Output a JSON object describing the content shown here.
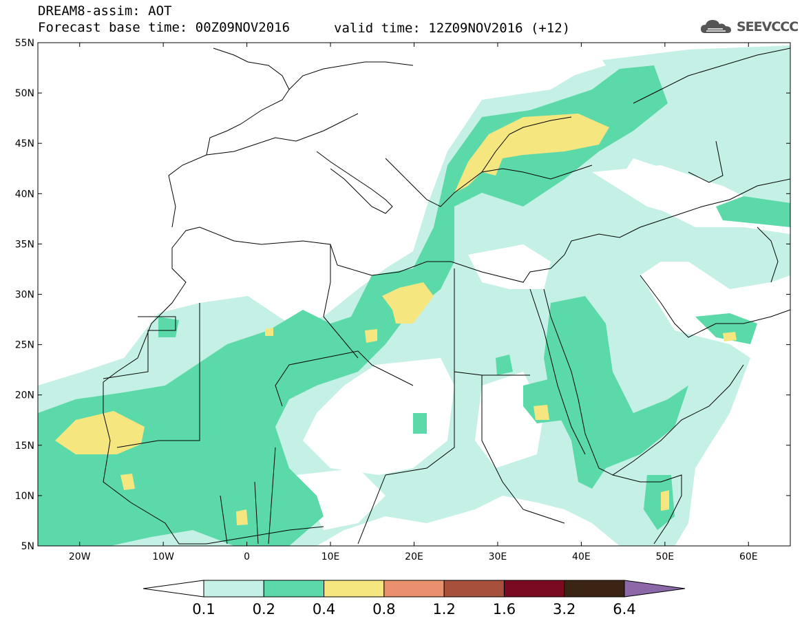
{
  "header": {
    "title": "DREAM8-assim: AOT",
    "base_time": "Forecast base time: 00Z09NOV2016",
    "valid_time": "valid time: 12Z09NOV2016 (+12)",
    "logo_text": "SEEVCCC"
  },
  "map": {
    "lat_labels": [
      "55N",
      "50N",
      "45N",
      "40N",
      "35N",
      "30N",
      "25N",
      "20N",
      "15N",
      "10N",
      "5N"
    ],
    "lon_labels": [
      "20W",
      "10W",
      "0",
      "10E",
      "20E",
      "30E",
      "40E",
      "50E",
      "60E"
    ],
    "extent": {
      "lon_min": -25,
      "lon_max": 65,
      "lat_min": 5,
      "lat_max": 55
    }
  },
  "colorbar": {
    "labels": [
      "0.1",
      "0.2",
      "0.4",
      "0.8",
      "1.2",
      "1.6",
      "3.2",
      "6.4"
    ],
    "colors": [
      "#ffffff",
      "#c5f0e6",
      "#5cd9a8",
      "#f5e680",
      "#e8916c",
      "#a7503c",
      "#7a0a20",
      "#3b2414",
      "#8b68a8"
    ]
  },
  "colors": {
    "level_0_1": "#c5f0e6",
    "level_0_2": "#5cd9a8",
    "level_0_4": "#f5e680",
    "border": "#000000"
  }
}
